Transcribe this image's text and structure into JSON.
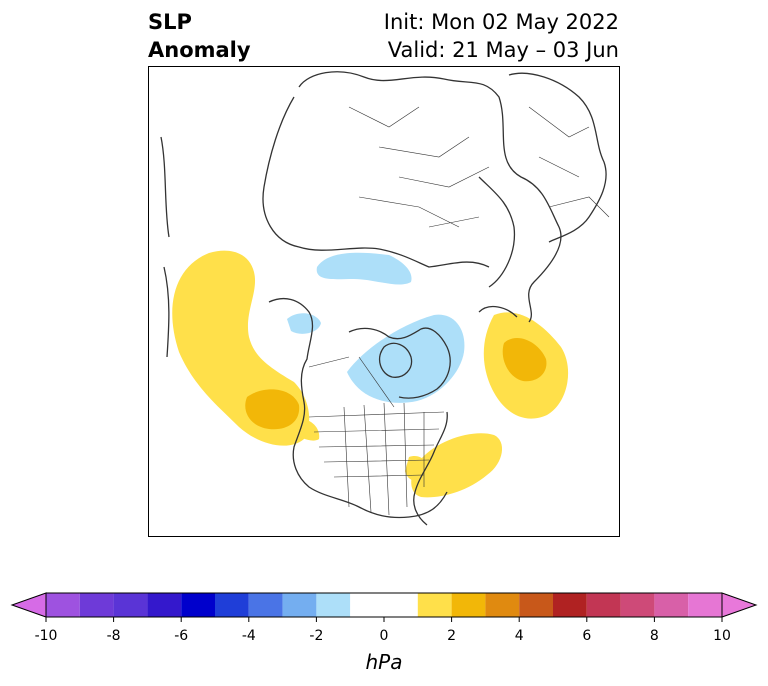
{
  "header": {
    "variable_line1": "SLP",
    "variable_line2": "Anomaly",
    "init_text": "Init: Mon 02 May 2022",
    "valid_text": "Valid: 21 May – 03 Jun"
  },
  "map": {
    "projection": "north-polar-stereographic",
    "anomaly_regions": [
      {
        "name": "north-pacific-positive-anomaly",
        "sign": "positive",
        "max_level_hpa": 3
      },
      {
        "name": "north-atlantic-positive-anomaly",
        "sign": "positive",
        "max_level_hpa": 3
      },
      {
        "name": "western-atlantic-positive-anomaly",
        "sign": "positive",
        "max_level_hpa": 2
      },
      {
        "name": "canadian-archipelago-negative-anomaly",
        "sign": "negative",
        "max_level_hpa": -2
      },
      {
        "name": "siberian-coast-negative-anomaly",
        "sign": "negative",
        "max_level_hpa": -2
      },
      {
        "name": "bering-negative-anomaly",
        "sign": "negative",
        "max_level_hpa": -2
      }
    ]
  },
  "colorbar": {
    "unit_label": "hPa",
    "tick_labels": [
      "-10",
      "-8",
      "-6",
      "-4",
      "-2",
      "0",
      "2",
      "4",
      "6",
      "8",
      "10"
    ],
    "bins": [
      {
        "from": -10,
        "to": -9,
        "color": "#9e52e0"
      },
      {
        "from": -9,
        "to": -8,
        "color": "#6e3ad8"
      },
      {
        "from": -8,
        "to": -7,
        "color": "#5a34d6"
      },
      {
        "from": -7,
        "to": -6,
        "color": "#3418cc"
      },
      {
        "from": -6,
        "to": -5,
        "color": "#0000cc"
      },
      {
        "from": -5,
        "to": -4,
        "color": "#1f3ed8"
      },
      {
        "from": -4,
        "to": -3,
        "color": "#4a74e6"
      },
      {
        "from": -3,
        "to": -2,
        "color": "#74aef0"
      },
      {
        "from": -2,
        "to": -1,
        "color": "#addff9"
      },
      {
        "from": -1,
        "to": 1,
        "color": "#ffffff"
      },
      {
        "from": 1,
        "to": 2,
        "color": "#ffe04a"
      },
      {
        "from": 2,
        "to": 3,
        "color": "#f2b708"
      },
      {
        "from": 3,
        "to": 4,
        "color": "#e08a10"
      },
      {
        "from": 4,
        "to": 5,
        "color": "#c8581a"
      },
      {
        "from": 5,
        "to": 6,
        "color": "#b02222"
      },
      {
        "from": 6,
        "to": 7,
        "color": "#c23654"
      },
      {
        "from": 7,
        "to": 8,
        "color": "#ce4a78"
      },
      {
        "from": 8,
        "to": 9,
        "color": "#d860a8"
      },
      {
        "from": 9,
        "to": 10,
        "color": "#e676d4"
      }
    ],
    "under_color": "#d66be6",
    "over_color": "#e878da"
  }
}
